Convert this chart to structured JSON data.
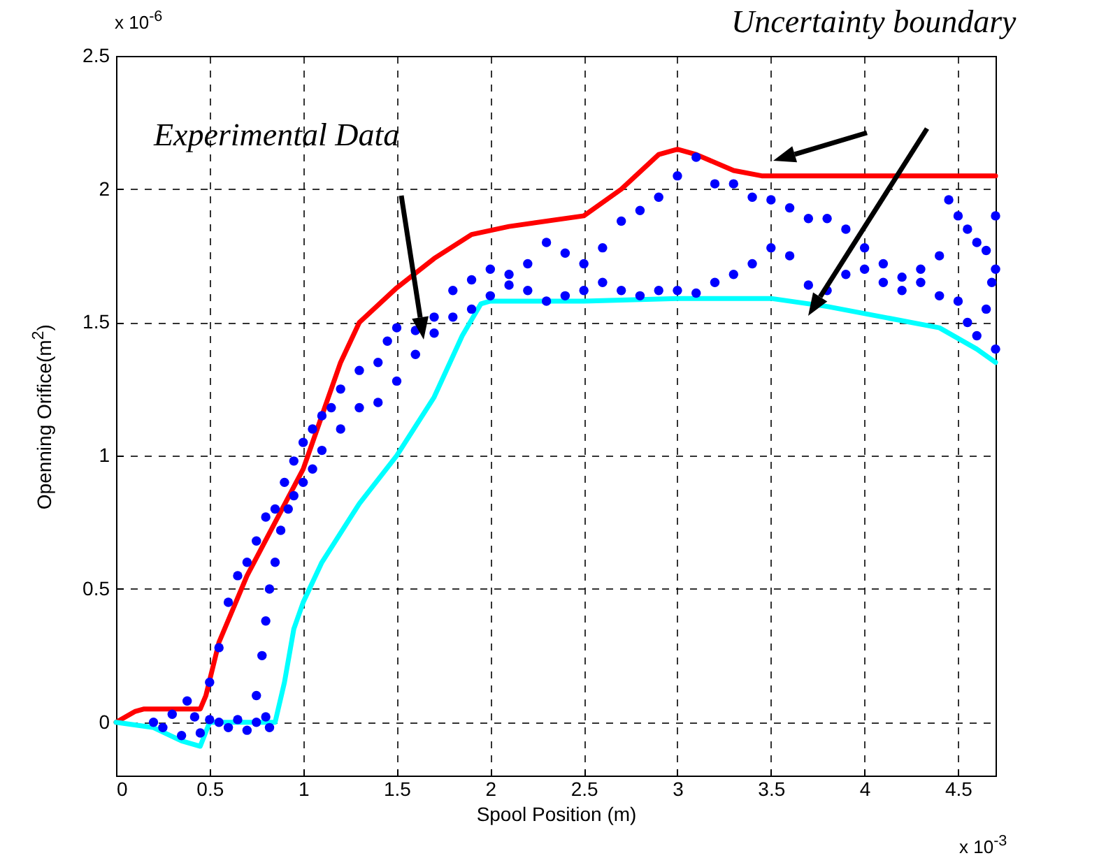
{
  "chart_data": {
    "type": "line",
    "xlabel": "Spool Position (m)",
    "ylabel": "Openning Orifice(m$^{2}$)",
    "xlim": [
      0,
      4.7
    ],
    "xticks": [
      0,
      0.5,
      1,
      1.5,
      2,
      2.5,
      3,
      3.5,
      4,
      4.5
    ],
    "ylim": [
      -0.2,
      2.5
    ],
    "yticks": [
      0,
      0.5,
      1,
      1.5,
      2,
      2.5
    ],
    "grid": true,
    "annotations": [
      "Experimental Data",
      "Uncertainty boundary",
      "x 10$^{-6}$",
      "x 10$^{-3}$"
    ],
    "series": [
      {
        "color": "#ff0000",
        "x": [
          0,
          0.1,
          0.15,
          0.45,
          0.48,
          0.55,
          0.7,
          0.85,
          1.0,
          1.1,
          1.2,
          1.3,
          1.5,
          1.7,
          1.9,
          2.1,
          2.5,
          2.7,
          2.9,
          3.0,
          3.1,
          3.3,
          3.45,
          4.7
        ],
        "values": [
          0,
          0.04,
          0.05,
          0.05,
          0.1,
          0.3,
          0.55,
          0.75,
          0.95,
          1.15,
          1.35,
          1.5,
          1.63,
          1.74,
          1.83,
          1.86,
          1.9,
          2.0,
          2.13,
          2.15,
          2.13,
          2.07,
          2.05,
          2.05
        ]
      },
      {
        "color": "#00ffff",
        "x": [
          0,
          0.2,
          0.35,
          0.45,
          0.5,
          0.85,
          0.9,
          0.95,
          1.0,
          1.1,
          1.3,
          1.5,
          1.7,
          1.85,
          1.95,
          2.0,
          2.5,
          3.0,
          3.5,
          3.8,
          4.1,
          4.4,
          4.6,
          4.7
        ],
        "values": [
          0,
          -0.02,
          -0.07,
          -0.09,
          0.0,
          0.0,
          0.15,
          0.35,
          0.45,
          0.6,
          0.82,
          1.0,
          1.22,
          1.45,
          1.57,
          1.58,
          1.58,
          1.59,
          1.59,
          1.56,
          1.52,
          1.48,
          1.4,
          1.35
        ]
      },
      {
        "type": "scatter",
        "color": "#0000ff",
        "x": [
          0.2,
          0.25,
          0.3,
          0.35,
          0.38,
          0.42,
          0.45,
          0.5,
          0.55,
          0.6,
          0.65,
          0.7,
          0.75,
          0.8,
          0.82,
          0.5,
          0.55,
          0.6,
          0.65,
          0.7,
          0.75,
          0.8,
          0.85,
          0.9,
          0.95,
          1.0,
          1.05,
          1.1,
          1.15,
          1.2,
          1.3,
          1.4,
          1.45,
          1.5,
          1.6,
          1.7,
          1.8,
          1.9,
          2.0,
          2.1,
          2.2,
          2.3,
          2.4,
          2.5,
          2.6,
          2.7,
          2.8,
          2.9,
          3.0,
          3.1,
          3.2,
          3.3,
          3.4,
          3.5,
          3.6,
          3.7,
          3.8,
          3.9,
          4.0,
          4.1,
          4.2,
          4.3,
          4.4,
          4.45,
          4.5,
          4.55,
          4.6,
          4.65,
          4.7,
          0.75,
          0.78,
          0.8,
          0.82,
          0.85,
          0.88,
          0.92,
          0.95,
          1.0,
          1.05,
          1.1,
          1.2,
          1.3,
          1.4,
          1.5,
          1.6,
          1.7,
          1.8,
          1.9,
          2.0,
          2.1,
          2.2,
          2.3,
          2.4,
          2.5,
          2.6,
          2.7,
          2.8,
          2.9,
          3.0,
          3.1,
          3.2,
          3.3,
          3.4,
          3.5,
          3.6,
          3.7,
          3.8,
          3.9,
          4.0,
          4.1,
          4.2,
          4.3,
          4.4,
          4.5,
          4.55,
          4.6,
          4.65,
          4.7,
          4.7,
          4.68
        ],
        "values": [
          0.0,
          -0.02,
          0.03,
          -0.05,
          0.08,
          0.02,
          -0.04,
          0.01,
          0.0,
          -0.02,
          0.01,
          -0.03,
          0.0,
          0.02,
          -0.02,
          0.15,
          0.28,
          0.45,
          0.55,
          0.6,
          0.68,
          0.77,
          0.8,
          0.9,
          0.98,
          1.05,
          1.1,
          1.15,
          1.18,
          1.25,
          1.32,
          1.35,
          1.43,
          1.48,
          1.47,
          1.52,
          1.62,
          1.66,
          1.7,
          1.68,
          1.72,
          1.8,
          1.76,
          1.72,
          1.78,
          1.88,
          1.92,
          1.97,
          2.05,
          2.12,
          2.02,
          2.02,
          1.97,
          1.96,
          1.93,
          1.89,
          1.89,
          1.85,
          1.78,
          1.72,
          1.67,
          1.7,
          1.75,
          1.96,
          1.9,
          1.85,
          1.8,
          1.77,
          1.7,
          0.1,
          0.25,
          0.38,
          0.5,
          0.6,
          0.72,
          0.8,
          0.85,
          0.9,
          0.95,
          1.02,
          1.1,
          1.18,
          1.2,
          1.28,
          1.38,
          1.46,
          1.52,
          1.55,
          1.6,
          1.64,
          1.62,
          1.58,
          1.6,
          1.62,
          1.65,
          1.62,
          1.6,
          1.62,
          1.62,
          1.61,
          1.65,
          1.68,
          1.72,
          1.78,
          1.75,
          1.64,
          1.62,
          1.68,
          1.7,
          1.65,
          1.62,
          1.65,
          1.6,
          1.58,
          1.5,
          1.45,
          1.55,
          1.4,
          1.9,
          1.65
        ]
      }
    ]
  }
}
